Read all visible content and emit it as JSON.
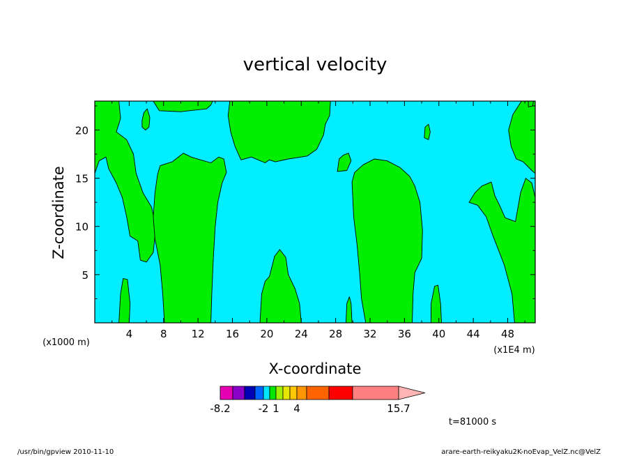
{
  "chart_data": {
    "type": "heatmap",
    "title": "vertical velocity",
    "xlabel": "X-coordinate",
    "ylabel": "Z-coordinate",
    "x_unit_left": "(x1000 m)",
    "x_unit_right": "(x1E4 m)",
    "xlim": [
      0,
      51.2
    ],
    "ylim": [
      0,
      23
    ],
    "x_ticks": [
      "4",
      "8",
      "12",
      "16",
      "20",
      "24",
      "28",
      "32",
      "36",
      "40",
      "44",
      "48"
    ],
    "y_ticks": [
      "5",
      "10",
      "15",
      "20"
    ],
    "background_level_color": "#00eeff",
    "regions_color": "#00ee00",
    "regions": [
      {
        "name": "upper-left",
        "poly": [
          [
            0,
            23
          ],
          [
            2.8,
            23
          ],
          [
            3.0,
            21.2
          ],
          [
            2.5,
            19.8
          ],
          [
            3.7,
            19.0
          ],
          [
            4.5,
            17.5
          ],
          [
            4.8,
            15.5
          ],
          [
            5.6,
            13.5
          ],
          [
            6.6,
            12.0
          ],
          [
            6.9,
            10.8
          ],
          [
            7.0,
            9.0
          ],
          [
            6.8,
            7.3
          ],
          [
            6.0,
            6.3
          ],
          [
            5.3,
            6.5
          ],
          [
            5.0,
            8.5
          ],
          [
            4.1,
            9.0
          ],
          [
            3.7,
            11.0
          ],
          [
            3.2,
            13.0
          ],
          [
            2.5,
            14.5
          ],
          [
            1.6,
            16.0
          ],
          [
            1.3,
            17.2
          ],
          [
            0.5,
            16.8
          ],
          [
            0,
            15.5
          ]
        ]
      },
      {
        "name": "top-band-a",
        "poly": [
          [
            6.8,
            23
          ],
          [
            13.7,
            23
          ],
          [
            13.5,
            22.6
          ],
          [
            13.0,
            22.2
          ],
          [
            10.0,
            21.9
          ],
          [
            7.5,
            22.0
          ]
        ]
      },
      {
        "name": "top-right-corner",
        "poly": [
          [
            49.6,
            23
          ],
          [
            51.2,
            23
          ],
          [
            51.2,
            15.5
          ],
          [
            50.8,
            15.8
          ],
          [
            49.8,
            16.7
          ],
          [
            49.0,
            17.0
          ],
          [
            48.4,
            18.3
          ],
          [
            48.1,
            20.0
          ],
          [
            48.6,
            21.6
          ]
        ]
      },
      {
        "name": "central-upper",
        "poly": [
          [
            15.7,
            23
          ],
          [
            27.4,
            23
          ],
          [
            27.3,
            21.5
          ],
          [
            26.8,
            20.6
          ],
          [
            26.6,
            19.5
          ],
          [
            25.8,
            18.0
          ],
          [
            24.7,
            17.3
          ],
          [
            22.5,
            17.0
          ],
          [
            21.0,
            16.7
          ],
          [
            20.3,
            16.9
          ],
          [
            19.8,
            16.6
          ],
          [
            18.2,
            17.2
          ],
          [
            17.0,
            16.9
          ],
          [
            16.3,
            18.3
          ],
          [
            15.8,
            19.8
          ],
          [
            15.5,
            21.5
          ]
        ]
      },
      {
        "name": "pillar-8-14",
        "poly": [
          [
            7.6,
            16.3
          ],
          [
            9.0,
            16.7
          ],
          [
            10.3,
            17.6
          ],
          [
            11.2,
            17.2
          ],
          [
            12.3,
            16.9
          ],
          [
            13.5,
            16.6
          ],
          [
            14.4,
            17.2
          ],
          [
            15.0,
            17.0
          ],
          [
            15.3,
            15.6
          ],
          [
            14.8,
            14.5
          ],
          [
            14.3,
            12.5
          ],
          [
            14.0,
            10.0
          ],
          [
            13.8,
            7.0
          ],
          [
            13.6,
            3.0
          ],
          [
            13.5,
            0
          ],
          [
            8.1,
            0
          ],
          [
            7.9,
            3.0
          ],
          [
            7.6,
            6.0
          ],
          [
            7.0,
            8.7
          ],
          [
            6.8,
            11.0
          ],
          [
            7.0,
            13.5
          ],
          [
            7.3,
            15.4
          ]
        ]
      },
      {
        "name": "pillar-30-38",
        "poly": [
          [
            29.9,
            14.6
          ],
          [
            30.2,
            15.6
          ],
          [
            31.2,
            16.4
          ],
          [
            32.5,
            17.0
          ],
          [
            34.0,
            16.8
          ],
          [
            35.5,
            16.1
          ],
          [
            36.6,
            15.2
          ],
          [
            37.2,
            14.2
          ],
          [
            37.8,
            12.5
          ],
          [
            38.1,
            9.6
          ],
          [
            38.0,
            6.7
          ],
          [
            37.2,
            5.2
          ],
          [
            37.0,
            3.0
          ],
          [
            36.9,
            0
          ],
          [
            31.5,
            0
          ],
          [
            31.0,
            2.5
          ],
          [
            30.8,
            5.0
          ],
          [
            30.5,
            8.0
          ],
          [
            30.1,
            11.0
          ]
        ]
      },
      {
        "name": "small-right-tower",
        "poly": [
          [
            43.5,
            12.5
          ],
          [
            44.2,
            13.5
          ],
          [
            45.0,
            14.2
          ],
          [
            46.1,
            14.6
          ],
          [
            46.5,
            13.2
          ],
          [
            47.1,
            12.1
          ],
          [
            47.7,
            10.9
          ],
          [
            48.9,
            10.5
          ],
          [
            49.5,
            13.5
          ],
          [
            50.1,
            15.0
          ],
          [
            50.8,
            14.5
          ],
          [
            51.2,
            13.0
          ],
          [
            51.2,
            0
          ],
          [
            48.8,
            0
          ],
          [
            48.5,
            3.0
          ],
          [
            47.6,
            6.0
          ],
          [
            46.3,
            9.0
          ],
          [
            45.5,
            11.0
          ],
          [
            44.5,
            12.2
          ]
        ]
      },
      {
        "name": "low-central",
        "poly": [
          [
            19.2,
            0
          ],
          [
            24.0,
            0
          ],
          [
            23.8,
            2.0
          ],
          [
            23.3,
            3.5
          ],
          [
            22.5,
            5.0
          ],
          [
            22.2,
            6.8
          ],
          [
            21.5,
            7.6
          ],
          [
            20.9,
            6.9
          ],
          [
            20.3,
            4.8
          ],
          [
            19.8,
            4.3
          ],
          [
            19.4,
            3.0
          ]
        ]
      },
      {
        "name": "low-left-spike",
        "poly": [
          [
            2.8,
            0
          ],
          [
            4.0,
            0
          ],
          [
            4.1,
            2.0
          ],
          [
            3.8,
            4.5
          ],
          [
            3.3,
            4.6
          ],
          [
            3.0,
            3.0
          ]
        ]
      },
      {
        "name": "low-spike-29",
        "poly": [
          [
            29.2,
            0
          ],
          [
            29.9,
            0
          ],
          [
            29.8,
            2.0
          ],
          [
            29.6,
            2.7
          ],
          [
            29.3,
            2.0
          ]
        ]
      },
      {
        "name": "low-spike-39",
        "poly": [
          [
            39.1,
            0
          ],
          [
            40.3,
            0
          ],
          [
            40.2,
            2.0
          ],
          [
            39.9,
            3.9
          ],
          [
            39.5,
            3.8
          ],
          [
            39.1,
            2.0
          ]
        ]
      },
      {
        "name": "island-6",
        "poly": [
          [
            5.5,
            20.3
          ],
          [
            5.9,
            20.0
          ],
          [
            6.3,
            20.3
          ],
          [
            6.4,
            21.3
          ],
          [
            6.1,
            22.2
          ],
          [
            5.7,
            21.8
          ],
          [
            5.5,
            21.0
          ]
        ]
      },
      {
        "name": "island-29",
        "poly": [
          [
            28.2,
            15.7
          ],
          [
            29.3,
            15.8
          ],
          [
            29.8,
            16.8
          ],
          [
            29.5,
            17.6
          ],
          [
            28.9,
            17.4
          ],
          [
            28.4,
            17.0
          ]
        ]
      },
      {
        "name": "island-38",
        "poly": [
          [
            38.3,
            19.2
          ],
          [
            38.8,
            19.0
          ],
          [
            39.0,
            19.8
          ],
          [
            38.8,
            20.6
          ],
          [
            38.4,
            20.3
          ]
        ]
      },
      {
        "name": "island-50",
        "poly": [
          [
            50.4,
            22.4
          ],
          [
            50.9,
            22.5
          ],
          [
            51.0,
            23
          ],
          [
            50.4,
            23
          ]
        ]
      }
    ],
    "colorbar": {
      "colors": [
        "#e600b4",
        "#8a00c8",
        "#0000b4",
        "#0064ff",
        "#00e6ff",
        "#00e600",
        "#a0f000",
        "#e6e600",
        "#ffc800",
        "#ff9600",
        "#ff6400",
        "#ff0000",
        "#ff8080",
        "#ffb4b4"
      ],
      "labels": [
        {
          "text": "-8.2",
          "index": 0
        },
        {
          "text": "-2",
          "index": 4
        },
        {
          "text": "1",
          "index": 6
        },
        {
          "text": "4",
          "index": 9
        },
        {
          "text": "15.7",
          "index": 13
        }
      ]
    },
    "time_label": "t=81000 s",
    "footer_left": "/usr/bin/gpview   2010-11-10",
    "footer_right": "arare-earth-reikyaku2K-noEvap_VelZ.nc@VelZ"
  }
}
